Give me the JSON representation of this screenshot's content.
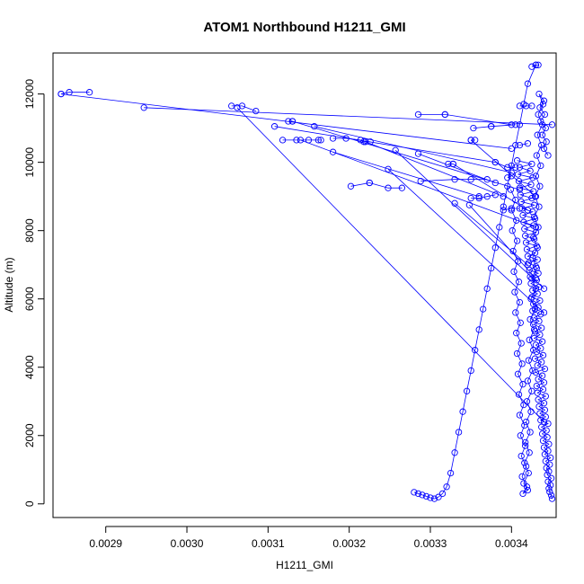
{
  "chart_data": {
    "type": "line",
    "title": "ATOM1 Northbound H1211_GMI",
    "xlabel": "H1211_GMI",
    "ylabel": "Altitude (m)",
    "xlim": [
      0.002835,
      0.003455
    ],
    "ylim": [
      -400,
      13200
    ],
    "x_ticks": [
      {
        "value": 0.0029,
        "label": "0.0029"
      },
      {
        "value": 0.003,
        "label": "0.0030"
      },
      {
        "value": 0.0031,
        "label": "0.0031"
      },
      {
        "value": 0.0032,
        "label": "0.0032"
      },
      {
        "value": 0.0033,
        "label": "0.0033"
      },
      {
        "value": 0.0034,
        "label": "0.0034"
      }
    ],
    "y_ticks": [
      {
        "value": 0,
        "label": "0"
      },
      {
        "value": 2000,
        "label": "2000"
      },
      {
        "value": 4000,
        "label": "4000"
      },
      {
        "value": 6000,
        "label": "6000"
      },
      {
        "value": 8000,
        "label": "8000"
      },
      {
        "value": 10000,
        "label": "10000"
      },
      {
        "value": 12000,
        "label": "12000"
      }
    ],
    "line_color": "#0000ff",
    "marker": "open-circle",
    "series": [
      {
        "x": [
          0.00345,
          0.003449,
          0.003447,
          0.003446,
          0.003448,
          0.003445,
          0.003449,
          0.003444,
          0.003446,
          0.003443,
          0.003447,
          0.003442,
          0.003448,
          0.003441,
          0.003445,
          0.00344,
          0.003446,
          0.003439,
          0.003444,
          0.003438,
          0.003443,
          0.003437,
          0.003445,
          0.003436,
          0.003442,
          0.003435,
          0.003441,
          0.003434,
          0.00344,
          0.003433,
          0.003442,
          0.003432,
          0.003439,
          0.003431,
          0.00344,
          0.003433,
          0.003438,
          0.00343,
          0.003441,
          0.003432,
          0.003437,
          0.003429,
          0.003439,
          0.003431,
          0.003436,
          0.00343,
          0.003438,
          0.003428,
          0.003435,
          0.003429,
          0.003437,
          0.003427,
          0.003434,
          0.003428,
          0.003436,
          0.003426,
          0.003433,
          0.003427,
          0.003435,
          0.003425,
          0.003432,
          0.003426,
          0.003434,
          0.003424,
          0.003431,
          0.003423,
          0.003433,
          0.003422,
          0.00343,
          0.003421,
          0.003432,
          0.00342,
          0.003429,
          0.003419,
          0.003431,
          0.003418,
          0.003428,
          0.003417,
          0.00343,
          0.003416,
          0.003427,
          0.003415,
          0.003429,
          0.003414,
          0.003426,
          0.003413,
          0.003428,
          0.003412,
          0.003425,
          0.003411,
          0.003427,
          0.00341,
          0.003424,
          0.003409,
          0.003426,
          0.003408,
          0.003423,
          0.00341,
          0.003425,
          0.003407
        ],
        "y": [
          150,
          250,
          350,
          450,
          550,
          650,
          750,
          850,
          950,
          1050,
          1150,
          1250,
          1350,
          1450,
          1550,
          1650,
          1750,
          1850,
          1950,
          2050,
          2150,
          2250,
          2350,
          2450,
          2550,
          2650,
          2750,
          2850,
          2950,
          3050,
          3150,
          3250,
          3350,
          3450,
          3550,
          3650,
          3750,
          3850,
          3950,
          4050,
          4150,
          4250,
          4350,
          4450,
          4550,
          4650,
          4750,
          4850,
          4950,
          5050,
          5150,
          5250,
          5350,
          5450,
          5550,
          5650,
          5750,
          5850,
          5950,
          6050,
          6150,
          6250,
          6350,
          6450,
          6550,
          6650,
          6750,
          6850,
          6950,
          7050,
          7150,
          7250,
          7350,
          7450,
          7550,
          7650,
          7750,
          7850,
          7950,
          8050,
          8150,
          8250,
          8350,
          8450,
          8550,
          8650,
          8750,
          8850,
          8950,
          9050,
          9150,
          9250,
          9350,
          9450,
          9550,
          9650,
          9750,
          9850,
          9950,
          10050
        ]
      },
      {
        "x": [
          0.003445,
          0.00344,
          0.003443,
          0.003438,
          0.003442,
          0.003436,
          0.003441,
          0.003435,
          0.00344,
          0.003434,
          0.003439,
          0.003433,
          0.003438,
          0.003432,
          0.003437,
          0.003431,
          0.003436,
          0.00343,
          0.003435,
          0.003429,
          0.003434,
          0.003428,
          0.003433,
          0.003427,
          0.003432,
          0.003426,
          0.003431,
          0.003425,
          0.00343,
          0.003424,
          0.003429,
          0.003423,
          0.003428,
          0.003422,
          0.003427,
          0.003421,
          0.003426,
          0.00342,
          0.003425,
          0.003419,
          0.003424,
          0.003418,
          0.003423,
          0.003417,
          0.003422,
          0.003416,
          0.003421,
          0.003415,
          0.00342,
          0.003414,
          0.003419,
          0.003413,
          0.003418,
          0.003412,
          0.003417,
          0.003411,
          0.003416,
          0.00341,
          0.003415,
          0.003409,
          0.003414,
          0.003408,
          0.003413,
          0.003407,
          0.003412,
          0.003406,
          0.003411,
          0.003405,
          0.00341,
          0.003404,
          0.003409,
          0.003403,
          0.003408,
          0.003402,
          0.003407,
          0.003401,
          0.003406,
          0.0034,
          0.003405,
          0.003399
        ],
        "y": [
          10200,
          10400,
          10600,
          10800,
          11000,
          11200,
          11400,
          11600,
          11800,
          12000,
          11700,
          11400,
          11100,
          10800,
          10500,
          10200,
          9900,
          9600,
          9300,
          9000,
          8700,
          8400,
          8100,
          7800,
          7500,
          7200,
          6900,
          6600,
          6300,
          6000,
          5700,
          5400,
          5100,
          4800,
          4500,
          4200,
          3900,
          3600,
          3300,
          3000,
          2700,
          2400,
          2100,
          1800,
          1500,
          1200,
          900,
          600,
          400,
          300,
          500,
          800,
          1100,
          1400,
          1700,
          2000,
          2300,
          2600,
          2900,
          3200,
          3500,
          3800,
          4100,
          4400,
          4700,
          5000,
          5300,
          5600,
          5900,
          6200,
          6500,
          6800,
          7100,
          7400,
          7700,
          8000,
          8300,
          8600,
          8900,
          9200
        ]
      },
      {
        "x": [
          0.00343,
          0.00342,
          0.003415,
          0.00341,
          0.003405,
          0.0034,
          0.003395,
          0.00339,
          0.003385,
          0.00338,
          0.003375,
          0.00337,
          0.003365,
          0.00336,
          0.003355,
          0.00335,
          0.003345,
          0.00334,
          0.003335,
          0.00333,
          0.003325,
          0.00332,
          0.003315,
          0.00331,
          0.003305,
          0.0033,
          0.003295,
          0.00329,
          0.003285,
          0.00328
        ],
        "y": [
          12850,
          12300,
          11700,
          11100,
          10500,
          9900,
          9300,
          8700,
          8100,
          7500,
          6900,
          6300,
          5700,
          5100,
          4500,
          3900,
          3300,
          2700,
          2100,
          1500,
          900,
          500,
          300,
          200,
          150,
          180,
          220,
          260,
          300,
          340
        ]
      }
    ],
    "segments": [
      {
        "x": [
          0.002845,
          0.002855,
          0.00288
        ],
        "y": [
          12000,
          12050,
          12050
        ]
      },
      {
        "x": [
          0.002845,
          0.0034
        ],
        "y": [
          12000,
          10400
        ]
      },
      {
        "x": [
          0.002947,
          0.00345
        ],
        "y": [
          11600,
          11100
        ]
      },
      {
        "x": [
          0.003055,
          0.003068,
          0.003085
        ],
        "y": [
          11650,
          11650,
          11500
        ]
      },
      {
        "x": [
          0.003062,
          0.00344
        ],
        "y": [
          11600,
          2400
        ]
      },
      {
        "x": [
          0.003108,
          0.00338
        ],
        "y": [
          11050,
          10000
        ]
      },
      {
        "x": [
          0.003125,
          0.00313
        ],
        "y": [
          11200,
          11200
        ]
      },
      {
        "x": [
          0.00313,
          0.00341
        ],
        "y": [
          11200,
          9200
        ]
      },
      {
        "x": [
          0.003118,
          0.003135,
          0.00315,
          0.003162,
          0.003165
        ],
        "y": [
          10650,
          10650,
          10650,
          10650,
          10650
        ]
      },
      {
        "x": [
          0.00314,
          0.00343
        ],
        "y": [
          10650,
          8100
        ]
      },
      {
        "x": [
          0.003157,
          0.0034
        ],
        "y": [
          11050,
          9700
        ]
      },
      {
        "x": [
          0.00318,
          0.003196,
          0.003214,
          0.003218,
          0.003226
        ],
        "y": [
          10700,
          10700,
          10650,
          10600,
          10600
        ]
      },
      {
        "x": [
          0.00318,
          0.00336
        ],
        "y": [
          10300,
          9000
        ]
      },
      {
        "x": [
          0.00322,
          0.00339
        ],
        "y": [
          10600,
          9000
        ]
      },
      {
        "x": [
          0.003257,
          0.00344
        ],
        "y": [
          10350,
          6300
        ]
      },
      {
        "x": [
          0.003285,
          0.00338
        ],
        "y": [
          10250,
          9400
        ]
      },
      {
        "x": [
          0.003285,
          0.003318
        ],
        "y": [
          11400,
          11400
        ]
      },
      {
        "x": [
          0.003318,
          0.0034
        ],
        "y": [
          11400,
          11100
        ]
      },
      {
        "x": [
          0.003322,
          0.003328
        ],
        "y": [
          9950,
          9950
        ]
      },
      {
        "x": [
          0.003328,
          0.00342
        ],
        "y": [
          9950,
          8600
        ]
      },
      {
        "x": [
          0.00335,
          0.003355
        ],
        "y": [
          10650,
          10650
        ]
      },
      {
        "x": [
          0.00335,
          0.00343
        ],
        "y": [
          10650,
          9000
        ]
      },
      {
        "x": [
          0.003353,
          0.003375
        ],
        "y": [
          11000,
          11050
        ]
      },
      {
        "x": [
          0.003375,
          0.003405
        ],
        "y": [
          11050,
          11100
        ]
      },
      {
        "x": [
          0.003202,
          0.003225
        ],
        "y": [
          9300,
          9400
        ]
      },
      {
        "x": [
          0.003225,
          0.003248,
          0.003265
        ],
        "y": [
          9400,
          9250,
          9250
        ]
      },
      {
        "x": [
          0.003248,
          0.00344
        ],
        "y": [
          9800,
          5600
        ]
      },
      {
        "x": [
          0.003288,
          0.00333,
          0.00335,
          0.00337
        ],
        "y": [
          9450,
          9500,
          9500,
          9500
        ]
      },
      {
        "x": [
          0.00333,
          0.00342
        ],
        "y": [
          8800,
          7000
        ]
      },
      {
        "x": [
          0.003348,
          0.00343
        ],
        "y": [
          8750,
          6600
        ]
      },
      {
        "x": [
          0.00335,
          0.00336,
          0.00337,
          0.00338
        ],
        "y": [
          8950,
          8950,
          9000,
          9050
        ]
      },
      {
        "x": [
          0.00338,
          0.003395,
          0.003405
        ],
        "y": [
          10000,
          9850,
          9850
        ]
      },
      {
        "x": [
          0.003395,
          0.0034
        ],
        "y": [
          9550,
          9600
        ]
      },
      {
        "x": [
          0.00339,
          0.0034,
          0.00341
        ],
        "y": [
          8600,
          8650,
          8650
        ]
      },
      {
        "x": [
          0.00341,
          0.003418,
          0.003425
        ],
        "y": [
          11650,
          11650,
          11650
        ]
      },
      {
        "x": [
          0.00341,
          0.00342
        ],
        "y": [
          10500,
          10550
        ]
      },
      {
        "x": [
          0.003425,
          0.00343,
          0.003433
        ],
        "y": [
          12800,
          12850,
          12850
        ]
      }
    ]
  }
}
